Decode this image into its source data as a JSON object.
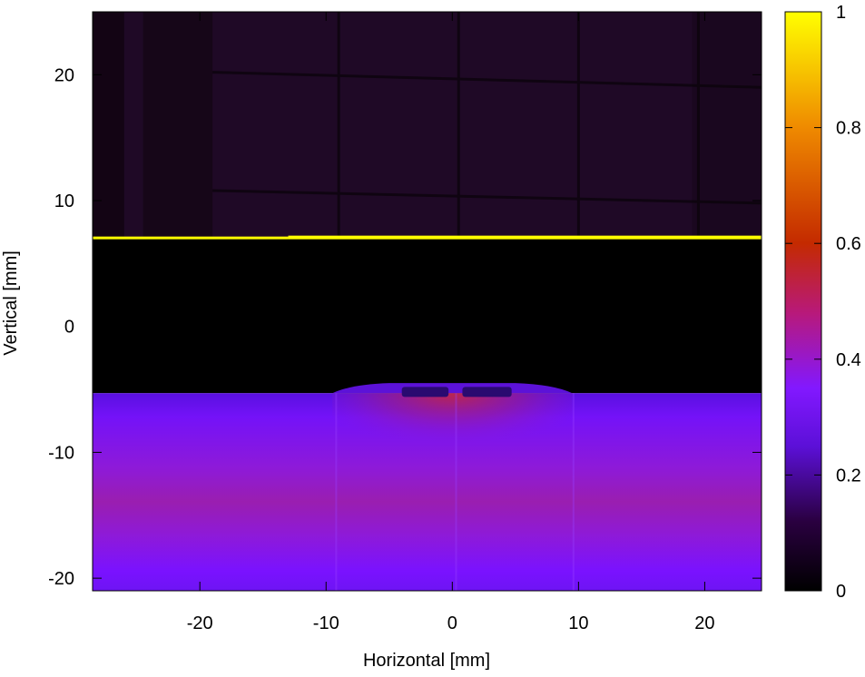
{
  "chart_data": {
    "type": "heatmap",
    "title": "",
    "xlabel": "Horizontal [mm]",
    "ylabel": "Vertical [mm]",
    "xlim": [
      -28.5,
      24.5
    ],
    "ylim": [
      -21,
      25
    ],
    "xticks": [
      -20,
      -10,
      0,
      10,
      20
    ],
    "xtick_labels": [
      "-20",
      "-10",
      "0",
      "10",
      "20"
    ],
    "yticks": [
      20,
      10,
      0,
      -10,
      -20
    ],
    "ytick_labels": [
      "20",
      "10",
      "0",
      "-10",
      "-20"
    ],
    "grid": false,
    "colorbar": {
      "range": [
        0,
        1
      ],
      "ticks": [
        0,
        0.2,
        0.4,
        0.6,
        0.8,
        1
      ],
      "tick_labels": [
        "0",
        "0.2",
        "0.4",
        "0.6",
        "0.8",
        "1"
      ],
      "colors": [
        "#000000",
        "#3a0070",
        "#7a12ff",
        "#b8197a",
        "#d43a00",
        "#ef8a00",
        "#ffff00"
      ]
    },
    "regions": {
      "upper_background_value": 0.05,
      "bright_line_y": 7.0,
      "bright_line_value": 1.0,
      "dark_band_value": 0.0,
      "lower_region_top_y": -5.3,
      "lower_region_peak_y": -13.5,
      "lower_region_peak_value": 0.45,
      "lower_region_edge_value": 0.25
    }
  }
}
